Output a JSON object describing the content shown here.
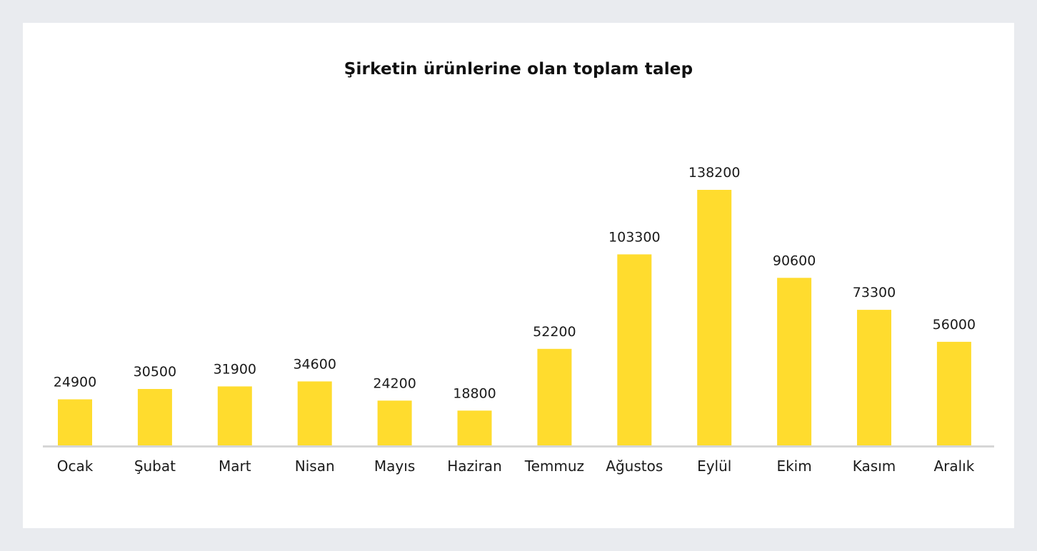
{
  "chart_data": {
    "type": "bar",
    "title": "Şirketin ürünlerine olan toplam talep",
    "xlabel": "",
    "ylabel": "",
    "categories": [
      "Ocak",
      "Şubat",
      "Mart",
      "Nisan",
      "Mayıs",
      "Haziran",
      "Temmuz",
      "Ağustos",
      "Eylül",
      "Ekim",
      "Kasım",
      "Aralık"
    ],
    "values": [
      24900,
      30500,
      31900,
      34600,
      24200,
      18800,
      52200,
      103300,
      138200,
      90600,
      73300,
      56000
    ],
    "ylim": [
      0,
      138200
    ],
    "grid": false,
    "legend": "none",
    "colors": {
      "bar": "#ffdc2e",
      "axis": "#d6d6d6",
      "background": "#e9ebef",
      "card": "#ffffff"
    }
  }
}
